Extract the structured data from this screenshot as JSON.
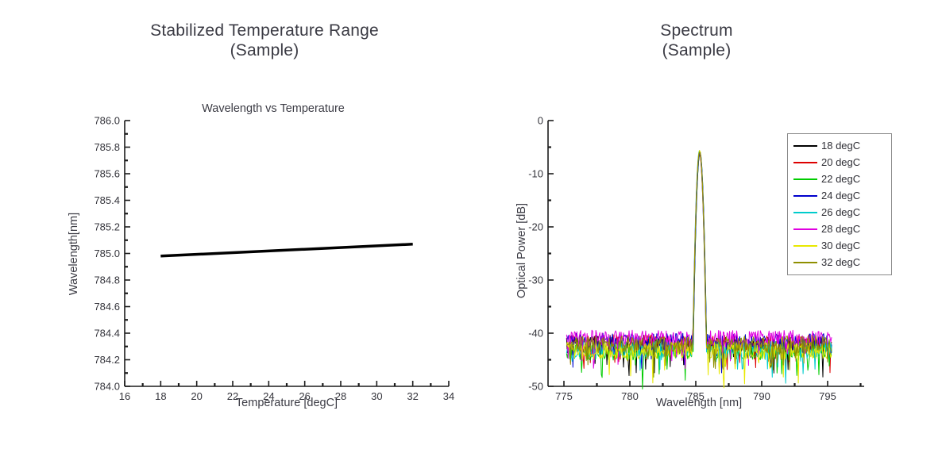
{
  "page": {
    "background": "#ffffff"
  },
  "chart_data": [
    {
      "type": "line",
      "title": "Stabilized Temperature Range",
      "subtitle": "(Sample)",
      "plot_title": "Wavelength vs Temperature",
      "xlabel": "Temperature [degC]",
      "ylabel": "Wavelength[nm]",
      "xlim": [
        16,
        34
      ],
      "ylim": [
        784.0,
        786.0
      ],
      "xticks": [
        16,
        18,
        20,
        22,
        24,
        26,
        28,
        30,
        32,
        34
      ],
      "xtick_labels": [
        "16",
        "18",
        "20",
        "22",
        "24",
        "26",
        "28",
        "30",
        "32",
        "34"
      ],
      "x_minor_ticks": [
        17,
        19,
        21,
        23,
        25,
        27,
        29,
        31,
        33
      ],
      "yticks": [
        786.0,
        785.8,
        785.6,
        785.4,
        785.2,
        785.0,
        784.8,
        784.6,
        784.4,
        784.2,
        784.0
      ],
      "ytick_labels": [
        "786.0",
        "785.8",
        "785.6",
        "785.4",
        "785.2",
        "785.0",
        "784.8",
        "784.6",
        "784.4",
        "784.2",
        "784.0"
      ],
      "y_minor_ticks": [
        785.9,
        785.7,
        785.5,
        785.3,
        785.1,
        784.9,
        784.7,
        784.5,
        784.3,
        784.1
      ],
      "grid": false,
      "legend": null,
      "series": [
        {
          "name": "Wavelength vs Temperature",
          "color": "#000000",
          "line_width": 3.5,
          "x": [
            18,
            32
          ],
          "y": [
            784.98,
            785.07
          ]
        }
      ]
    },
    {
      "type": "line",
      "title": "Spectrum",
      "subtitle": "(Sample)",
      "plot_title": "",
      "xlabel": "Wavelength [nm]",
      "ylabel": "Optical Power [dB]",
      "xlim": [
        773.8,
        797.7
      ],
      "ylim": [
        -50,
        0
      ],
      "xticks": [
        775,
        780,
        785,
        790,
        795
      ],
      "xtick_labels": [
        "775",
        "780",
        "785",
        "790",
        "795"
      ],
      "x_minor_ticks": [
        777.5,
        782.5,
        787.5,
        792.5,
        797.5
      ],
      "yticks": [
        0,
        -10,
        -20,
        -30,
        -40,
        -50
      ],
      "ytick_labels": [
        "0",
        "-10",
        "-20",
        "-30",
        "-40",
        "-50"
      ],
      "y_minor_ticks": [
        -5,
        -15,
        -25,
        -35,
        -45
      ],
      "grid": false,
      "legend": {
        "position": "top-right",
        "border": true
      },
      "peak": {
        "center_nm": 785.3,
        "top_db": -5.9,
        "base_width_nm": 1.0,
        "k_db_per_nm2": 140
      },
      "noise": {
        "x_start_nm": 775.2,
        "x_end_nm": 795.3,
        "step_nm": 0.06,
        "jitter_db": 1.6,
        "spike_prob": 0.09,
        "spike_extra_db": 5.5,
        "min_db": -51
      },
      "series": [
        {
          "name": "18 degC",
          "color": "#000000",
          "noise_floor_db": -42.2
        },
        {
          "name": "20 degC",
          "color": "#dd0000",
          "noise_floor_db": -41.9
        },
        {
          "name": "22 degC",
          "color": "#00cc00",
          "noise_floor_db": -43.5
        },
        {
          "name": "24 degC",
          "color": "#0000cc",
          "noise_floor_db": -41.6
        },
        {
          "name": "26 degC",
          "color": "#00cccc",
          "noise_floor_db": -43.1
        },
        {
          "name": "28 degC",
          "color": "#e000e0",
          "noise_floor_db": -41.0
        },
        {
          "name": "30 degC",
          "color": "#e8e800",
          "noise_floor_db": -43.3
        },
        {
          "name": "32 degC",
          "color": "#8f8f00",
          "noise_floor_db": -42.1
        }
      ]
    }
  ]
}
